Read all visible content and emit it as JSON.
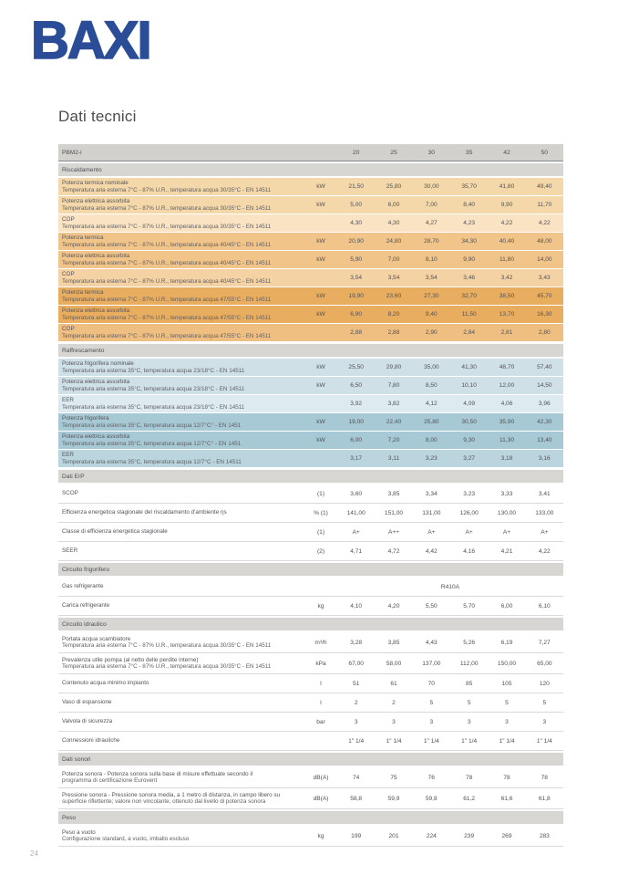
{
  "brand": {
    "logo": "BAXI"
  },
  "title": "Dati tecnici",
  "page_number": "24",
  "colors": {
    "brand_blue": "#2b4d97",
    "heating_light": "#f5d8a9",
    "heating_medium": "#f1c48a",
    "heating_dark": "#e9ad60",
    "cooling_light": "#cfe0e7",
    "cooling_dark": "#a7c9d5",
    "section_gray": "#d7d6d3",
    "header_gray": "#d2d1ce"
  },
  "table": {
    "header": {
      "label": "PBM2-i",
      "unit": "",
      "cols": [
        "20",
        "25",
        "30",
        "35",
        "42",
        "50"
      ]
    },
    "rows": [
      {
        "type": "section",
        "label": "Riscaldamento"
      },
      {
        "type": "data",
        "cls": "o1",
        "label": "Potenza termica nominale",
        "sub": "Temperatura aria esterna 7°C - 87% U.R., temperatura acqua 30/35°C - EN 14511",
        "unit": "kW",
        "values": [
          "21,50",
          "25,80",
          "30,00",
          "35,70",
          "41,80",
          "49,40"
        ]
      },
      {
        "type": "data",
        "cls": "o1",
        "label": "Potenza elettrica assorbita",
        "sub": "Temperatura aria esterna 7°C - 87% U.R., temperatura acqua 30/35°C - EN 14511",
        "unit": "kW",
        "values": [
          "5,00",
          "6,00",
          "7,00",
          "8,40",
          "9,90",
          "11,70"
        ]
      },
      {
        "type": "data",
        "cls": "o1l",
        "label": "COP",
        "sub": "Temperatura aria esterna 7°C - 87% U.R., temperatura acqua 30/35°C - EN 14511",
        "unit": "",
        "values": [
          "4,30",
          "4,30",
          "4,27",
          "4,23",
          "4,22",
          "4,22"
        ]
      },
      {
        "type": "data",
        "cls": "o2",
        "label": "Potenza termica",
        "sub": "Temperatura aria esterna 7°C - 87% U.R., temperatura acqua 40/45°C - EN 14511",
        "unit": "kW",
        "values": [
          "20,90",
          "24,80",
          "28,70",
          "34,30",
          "40,40",
          "48,00"
        ]
      },
      {
        "type": "data",
        "cls": "o2",
        "label": "Potenza elettrica assorbita",
        "sub": "Temperatura aria esterna 7°C - 87% U.R., temperatura acqua 40/45°C - EN 14511",
        "unit": "kW",
        "values": [
          "5,90",
          "7,00",
          "8,10",
          "9,90",
          "11,80",
          "14,00"
        ]
      },
      {
        "type": "data",
        "cls": "o2l",
        "label": "COP",
        "sub": "Temperatura aria esterna 7°C - 87% U.R., temperatura acqua 40/45°C - EN 14511",
        "unit": "",
        "values": [
          "3,54",
          "3,54",
          "3,54",
          "3,46",
          "3,42",
          "3,43"
        ]
      },
      {
        "type": "data",
        "cls": "o3",
        "label": "Potenza termica",
        "sub": "Temperatura aria esterna 7°C - 87% U.R., temperatura acqua 47/55°C - EN 14511",
        "unit": "kW",
        "values": [
          "19,90",
          "23,60",
          "27,30",
          "32,70",
          "38,50",
          "45,70"
        ]
      },
      {
        "type": "data",
        "cls": "o3",
        "label": "Potenza elettrica assorbita",
        "sub": "Temperatura aria esterna 7°C - 87% U.R., temperatura acqua 47/55°C - EN 14511",
        "unit": "kW",
        "values": [
          "6,90",
          "8,20",
          "9,40",
          "11,50",
          "13,70",
          "16,30"
        ]
      },
      {
        "type": "data",
        "cls": "o3l",
        "label": "COP",
        "sub": "Temperatura aria esterna 7°C - 87% U.R., temperatura acqua 47/55°C - EN 14511",
        "unit": "",
        "values": [
          "2,88",
          "2,88",
          "2,90",
          "2,84",
          "2,81",
          "2,80"
        ]
      },
      {
        "type": "section",
        "label": "Raffrescamento"
      },
      {
        "type": "data",
        "cls": "b1",
        "label": "Potenza frigorifera nominale",
        "sub": "Temperatura aria esterna 35°C, temperatura acqua 23/18°C - EN 14511",
        "unit": "kW",
        "values": [
          "25,50",
          "29,80",
          "35,00",
          "41,30",
          "48,70",
          "57,40"
        ]
      },
      {
        "type": "data",
        "cls": "b1",
        "label": "Potenza elettrica assorbita",
        "sub": "Temperatura aria esterna 35°C, temperatura acqua 23/18°C - EN 14511",
        "unit": "kW",
        "values": [
          "6,50",
          "7,80",
          "8,50",
          "10,10",
          "12,00",
          "14,50"
        ]
      },
      {
        "type": "data",
        "cls": "b1l",
        "label": "EER",
        "sub": "Temperatura aria esterna 35°C, temperatura acqua 23/18°C - EN 14511",
        "unit": "",
        "values": [
          "3,92",
          "3,82",
          "4,12",
          "4,09",
          "4,06",
          "3,96"
        ]
      },
      {
        "type": "data",
        "cls": "b2",
        "label": "Potenza frigorifera",
        "sub": "Temperatura aria esterna 35°C, temperatura acqua 12/7°C° - EN 1451",
        "unit": "kW",
        "values": [
          "19,00",
          "22,40",
          "25,80",
          "30,50",
          "35,90",
          "42,30"
        ]
      },
      {
        "type": "data",
        "cls": "b2",
        "label": "Potenza elettrica assorbita",
        "sub": "Temperatura aria esterna 35°C, temperatura acqua 12/7°C° - EN 1451",
        "unit": "kW",
        "values": [
          "6,00",
          "7,20",
          "8,00",
          "9,30",
          "11,30",
          "13,40"
        ]
      },
      {
        "type": "data",
        "cls": "b2l",
        "label": "EER",
        "sub": "Temperatura aria esterna 35°C, temperatura acqua 12/7°C - EN 14511",
        "unit": "",
        "values": [
          "3,17",
          "3,11",
          "3,23",
          "3,27",
          "3,18",
          "3,16"
        ]
      },
      {
        "type": "section",
        "label": "Dati ErP"
      },
      {
        "type": "data",
        "cls": "w",
        "label": "SCOP",
        "unit": "(1)",
        "values": [
          "3,60",
          "3,85",
          "3,34",
          "3,23",
          "3,33",
          "3,41"
        ]
      },
      {
        "type": "data",
        "cls": "w",
        "label": "Efficienza energetica stagionale del riscaldamento d'ambiente ηs",
        "unit": "% (1)",
        "values": [
          "141,00",
          "151,00",
          "131,00",
          "126,00",
          "130,00",
          "133,00"
        ]
      },
      {
        "type": "data",
        "cls": "w",
        "label": "Classe di efficienza energetica stagionale",
        "unit": "(1)",
        "values": [
          "A+",
          "A++",
          "A+",
          "A+",
          "A+",
          "A+"
        ]
      },
      {
        "type": "data",
        "cls": "w",
        "label": "SEER",
        "unit": "(2)",
        "values": [
          "4,71",
          "4,72",
          "4,42",
          "4,16",
          "4,21",
          "4,22"
        ]
      },
      {
        "type": "section",
        "label": "Circuito frigorifero"
      },
      {
        "type": "data",
        "cls": "w",
        "label": "Gas refrigerante",
        "unit": "",
        "span": "R410A"
      },
      {
        "type": "data",
        "cls": "w",
        "label": "Carica refrigerante",
        "unit": "kg",
        "values": [
          "4,10",
          "4,20",
          "5,50",
          "5,70",
          "6,00",
          "6,10"
        ]
      },
      {
        "type": "section",
        "label": "Circuito idraulico"
      },
      {
        "type": "data",
        "cls": "w",
        "label": "Portata acqua scambiatore",
        "sub": "Temperatura aria esterna 7°C - 87% U.R., temperatura acqua 30/35°C - EN 14511",
        "unit": "m³/h",
        "values": [
          "3,28",
          "3,85",
          "4,43",
          "5,26",
          "6,19",
          "7,27"
        ]
      },
      {
        "type": "data",
        "cls": "w",
        "label": "Prevalenza utile pompa (al netto delle perdite interne)",
        "sub": "Temperatura aria esterna 7°C - 87% U.R., temperatura acqua 30/35°C - EN 14511",
        "unit": "kPa",
        "values": [
          "67,00",
          "58,00",
          "137,00",
          "112,00",
          "150,00",
          "65,00"
        ]
      },
      {
        "type": "data",
        "cls": "w",
        "label": "Contenuto acqua minimo impianto",
        "unit": "l",
        "values": [
          "51",
          "61",
          "70",
          "85",
          "105",
          "120"
        ]
      },
      {
        "type": "data",
        "cls": "w",
        "label": "Vaso di espansione",
        "unit": "l",
        "values": [
          "2",
          "2",
          "5",
          "5",
          "5",
          "5"
        ]
      },
      {
        "type": "data",
        "cls": "w",
        "label": "Valvola di sicurezza",
        "unit": "bar",
        "values": [
          "3",
          "3",
          "3",
          "3",
          "3",
          "3"
        ]
      },
      {
        "type": "data",
        "cls": "w",
        "label": "Connessioni idrauliche",
        "unit": "",
        "values": [
          "1\" 1/4",
          "1\" 1/4",
          "1\" 1/4",
          "1\" 1/4",
          "1\" 1/4",
          "1\" 1/4"
        ]
      },
      {
        "type": "section",
        "label": "Dati sonori"
      },
      {
        "type": "data",
        "cls": "w",
        "label": "Potenza sonora - Potenza sonora sulla base di misure effettuate secondo il",
        "sub": "programma di certificazione Eurovent",
        "unit": "dB(A)",
        "values": [
          "74",
          "75",
          "76",
          "78",
          "78",
          "78"
        ]
      },
      {
        "type": "data",
        "cls": "w",
        "label": "Pressione sonora - Pressione sonora media, a 1 metro di distanza, in campo libero su",
        "sub": "superficie riflettente; valore non vincolante, ottenuto dal livello di potenza sonora",
        "unit": "dB(A)",
        "values": [
          "58,8",
          "59,9",
          "59,8",
          "61,2",
          "61,6",
          "61,8"
        ]
      },
      {
        "type": "section",
        "label": "Peso"
      },
      {
        "type": "data",
        "cls": "w",
        "label": "Peso a vuoto",
        "sub": "Configurazione standard, a vuoto, imballo escluso",
        "unit": "kg",
        "values": [
          "199",
          "201",
          "224",
          "239",
          "269",
          "283"
        ]
      }
    ]
  }
}
